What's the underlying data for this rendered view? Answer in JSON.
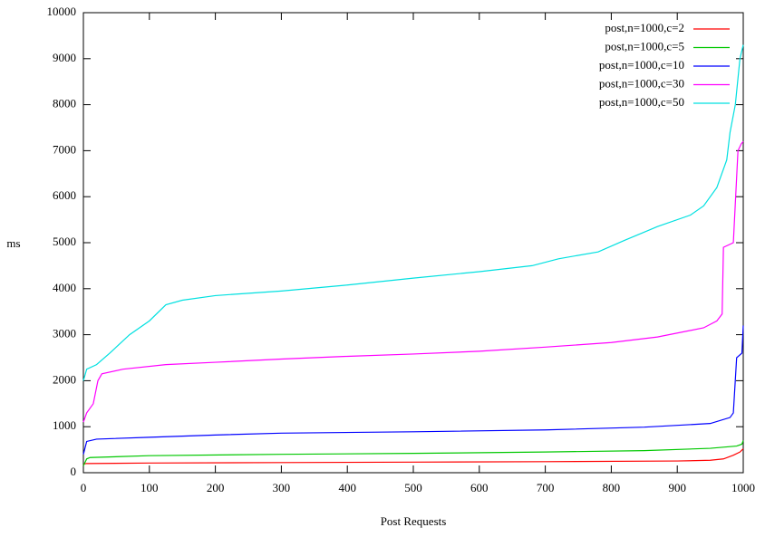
{
  "chart_data": {
    "type": "line",
    "xlabel": "Post Requests",
    "ylabel": "ms",
    "xlim": [
      0,
      1000
    ],
    "xticks": [
      0,
      100,
      200,
      300,
      400,
      500,
      600,
      700,
      800,
      900,
      1000
    ],
    "ylim": [
      0,
      10000
    ],
    "yticks": [
      0,
      1000,
      2000,
      3000,
      4000,
      5000,
      6000,
      7000,
      8000,
      9000,
      10000
    ],
    "legend": "top-right",
    "series": [
      {
        "name": "post,n=1000,c=2",
        "color": "#ff0000",
        "x": [
          0,
          5,
          100,
          300,
          500,
          700,
          900,
          950,
          970,
          985,
          995,
          1000
        ],
        "values": [
          190,
          200,
          210,
          220,
          230,
          240,
          255,
          270,
          300,
          380,
          450,
          520
        ]
      },
      {
        "name": "post,n=1000,c=5",
        "color": "#00c800",
        "x": [
          0,
          5,
          10,
          100,
          300,
          500,
          700,
          850,
          950,
          990,
          998,
          1000
        ],
        "values": [
          150,
          300,
          330,
          370,
          400,
          420,
          450,
          480,
          530,
          580,
          620,
          700
        ]
      },
      {
        "name": "post,n=1000,c=10",
        "color": "#0000ff",
        "x": [
          0,
          5,
          20,
          100,
          200,
          300,
          500,
          700,
          850,
          950,
          980,
          985,
          990,
          998,
          1000
        ],
        "values": [
          400,
          680,
          730,
          770,
          820,
          860,
          890,
          930,
          990,
          1070,
          1200,
          1300,
          2500,
          2600,
          3200
        ]
      },
      {
        "name": "post,n=1000,c=30",
        "color": "#ff00ff",
        "x": [
          0,
          5,
          15,
          22,
          28,
          60,
          125,
          200,
          300,
          400,
          500,
          600,
          700,
          800,
          870,
          940,
          960,
          968,
          970,
          985,
          992,
          997,
          1000
        ],
        "values": [
          1100,
          1300,
          1500,
          2000,
          2150,
          2250,
          2350,
          2400,
          2470,
          2530,
          2580,
          2640,
          2730,
          2830,
          2950,
          3150,
          3300,
          3450,
          4900,
          5000,
          7000,
          7150,
          7200
        ]
      },
      {
        "name": "post,n=1000,c=50",
        "color": "#00e0e0",
        "x": [
          0,
          5,
          20,
          40,
          70,
          100,
          125,
          150,
          200,
          300,
          400,
          500,
          600,
          680,
          720,
          780,
          820,
          870,
          920,
          940,
          960,
          975,
          980,
          988,
          995,
          1000
        ],
        "values": [
          2000,
          2250,
          2350,
          2600,
          3000,
          3300,
          3650,
          3750,
          3850,
          3950,
          4080,
          4230,
          4370,
          4500,
          4650,
          4800,
          5050,
          5350,
          5600,
          5800,
          6200,
          6800,
          7400,
          8000,
          9000,
          9300
        ]
      }
    ]
  }
}
